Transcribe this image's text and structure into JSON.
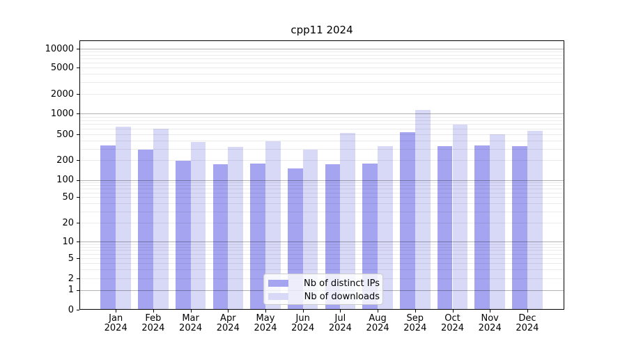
{
  "title": "cpp11 2024",
  "legend": {
    "items": [
      {
        "label": "Nb of distinct IPs",
        "color": "#a4a4f0"
      },
      {
        "label": "Nb of downloads",
        "color": "#d8d8f7"
      }
    ]
  },
  "chart_data": {
    "type": "bar",
    "title": "cpp11 2024",
    "yscale": "symlog",
    "grid": true,
    "legend_position": "lower center",
    "categories": [
      "Jan 2024",
      "Feb 2024",
      "Mar 2024",
      "Apr 2024",
      "May 2024",
      "Jun 2024",
      "Jul 2024",
      "Aug 2024",
      "Sep 2024",
      "Oct 2024",
      "Nov 2024",
      "Dec 2024"
    ],
    "x_tick_month_line": [
      "Jan",
      "Feb",
      "Mar",
      "Apr",
      "May",
      "Jun",
      "Jul",
      "Aug",
      "Sep",
      "Oct",
      "Nov",
      "Dec"
    ],
    "x_tick_year_line": "2024",
    "y_tick_labels": [
      "10000",
      "5000",
      "2000",
      "1000",
      "500",
      "200",
      "100",
      "50",
      "20",
      "10",
      "5",
      "2",
      "1",
      "0"
    ],
    "y_tick_values": [
      10000,
      5000,
      2000,
      1000,
      500,
      200,
      100,
      50,
      20,
      10,
      5,
      2,
      1,
      0
    ],
    "ylim": [
      0,
      13500
    ],
    "series": [
      {
        "name": "Nb of distinct IPs",
        "color": "#a4a4f0",
        "values": [
          335,
          290,
          195,
          173,
          178,
          150,
          173,
          175,
          540,
          330,
          340,
          325
        ]
      },
      {
        "name": "Nb of downloads",
        "color": "#d8d8f7",
        "values": [
          650,
          600,
          385,
          320,
          395,
          290,
          525,
          330,
          1120,
          685,
          500,
          555
        ]
      }
    ]
  }
}
